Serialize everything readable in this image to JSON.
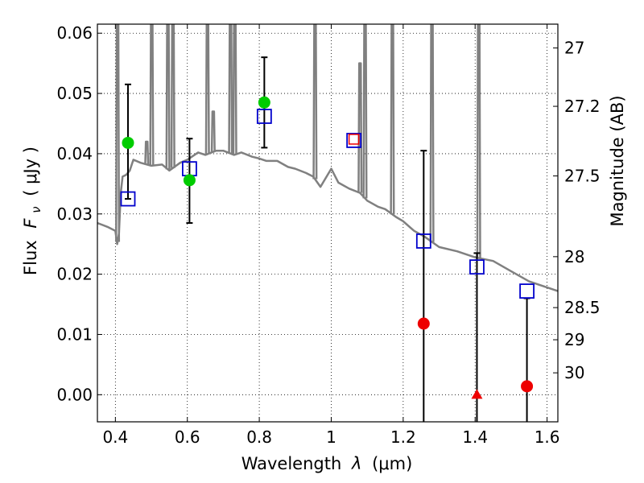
{
  "chart_data": {
    "type": "scatter",
    "xlabel_prefix": "Wavelength",
    "xlabel_symbol": "λ",
    "xlabel_unit": "(μm)",
    "ylabel_prefix": "Flux",
    "ylabel_symbol": "F",
    "ylabel_sub": "ν",
    "ylabel_unit": "( μJy )",
    "y2label": "Magnitude (AB)",
    "xlim": [
      0.35,
      1.63
    ],
    "ylim": [
      -0.0045,
      0.0615
    ],
    "x_ticks": [
      0.4,
      0.6,
      0.8,
      1.0,
      1.2,
      1.4,
      1.6
    ],
    "x_tick_labels": [
      "0.4",
      "0.6",
      "0.8",
      "1",
      "1.2",
      "1.4",
      "1.6"
    ],
    "y_ticks": [
      0.0,
      0.01,
      0.02,
      0.03,
      0.04,
      0.05,
      0.06
    ],
    "y_tick_labels": [
      "0.00",
      "0.01",
      "0.02",
      "0.03",
      "0.04",
      "0.05",
      "0.06"
    ],
    "mag_ticks": [
      27,
      27.2,
      27.5,
      28,
      28.5,
      29,
      30
    ],
    "mag_tick_labels": [
      "27",
      "27.2",
      "27.5",
      "28",
      "28.5",
      "29",
      "30"
    ],
    "grid": true,
    "colors": {
      "model": "#808080",
      "model_points": "#0000cc",
      "detections": "#00cc00",
      "upper_limits": "#ee0000",
      "errorbar": "#000000"
    },
    "model_spectrum": {
      "x": [
        0.35,
        0.38,
        0.4,
        0.405,
        0.41,
        0.415,
        0.42,
        0.43,
        0.44,
        0.45,
        0.47,
        0.5,
        0.53,
        0.55,
        0.58,
        0.6,
        0.63,
        0.65,
        0.68,
        0.7,
        0.73,
        0.75,
        0.78,
        0.8,
        0.82,
        0.85,
        0.88,
        0.9,
        0.93,
        0.95,
        0.97,
        1.0,
        1.02,
        1.05,
        1.08,
        1.1,
        1.13,
        1.15,
        1.18,
        1.2,
        1.23,
        1.26,
        1.3,
        1.35,
        1.4,
        1.45,
        1.5,
        1.55,
        1.6,
        1.63
      ],
      "y": [
        0.0285,
        0.0278,
        0.0272,
        0.025,
        0.0268,
        0.0335,
        0.0362,
        0.0365,
        0.0372,
        0.039,
        0.0385,
        0.038,
        0.0382,
        0.0372,
        0.0385,
        0.039,
        0.0402,
        0.0398,
        0.0405,
        0.0405,
        0.0398,
        0.0402,
        0.0395,
        0.0392,
        0.0388,
        0.0388,
        0.0378,
        0.0375,
        0.0368,
        0.0362,
        0.0345,
        0.0375,
        0.0352,
        0.0342,
        0.0335,
        0.0322,
        0.0312,
        0.0308,
        0.0295,
        0.0288,
        0.0272,
        0.0262,
        0.0245,
        0.0238,
        0.0228,
        0.0222,
        0.0205,
        0.0188,
        0.0178,
        0.0172
      ]
    },
    "emission_lines": [
      {
        "x": 0.406,
        "peak": 0.0615
      },
      {
        "x": 0.487,
        "peak": 0.042
      },
      {
        "x": 0.501,
        "peak": 0.0615
      },
      {
        "x": 0.546,
        "peak": 0.0615
      },
      {
        "x": 0.56,
        "peak": 0.0615
      },
      {
        "x": 0.656,
        "peak": 0.0615
      },
      {
        "x": 0.672,
        "peak": 0.047
      },
      {
        "x": 0.72,
        "peak": 0.0615
      },
      {
        "x": 0.732,
        "peak": 0.0615
      },
      {
        "x": 0.955,
        "peak": 0.0615
      },
      {
        "x": 1.08,
        "peak": 0.055
      },
      {
        "x": 1.094,
        "peak": 0.0615
      },
      {
        "x": 1.17,
        "peak": 0.0615
      },
      {
        "x": 1.28,
        "peak": 0.0615
      },
      {
        "x": 1.41,
        "peak": 0.0615
      }
    ],
    "model_points": {
      "x": [
        0.435,
        0.606,
        0.814,
        1.063,
        1.257,
        1.405,
        1.544
      ],
      "y": [
        0.0325,
        0.0375,
        0.0462,
        0.0422,
        0.0255,
        0.0212,
        0.0172
      ]
    },
    "detections": {
      "x": [
        0.435,
        0.606,
        0.814
      ],
      "y": [
        0.0418,
        0.0356,
        0.0485
      ],
      "yerr_low": [
        0.0325,
        0.0285,
        0.041
      ],
      "yerr_high": [
        0.0515,
        0.0425,
        0.056
      ]
    },
    "upper_limits": {
      "x": [
        1.257,
        1.405,
        1.544
      ],
      "y": [
        0.0118,
        0.0,
        0.0014
      ],
      "markers": [
        "circle",
        "triangle",
        "circle"
      ],
      "yerr_high": [
        0.0405,
        0.0235,
        0.016
      ]
    },
    "special_point": {
      "x": 1.063,
      "y": 0.0424
    }
  }
}
